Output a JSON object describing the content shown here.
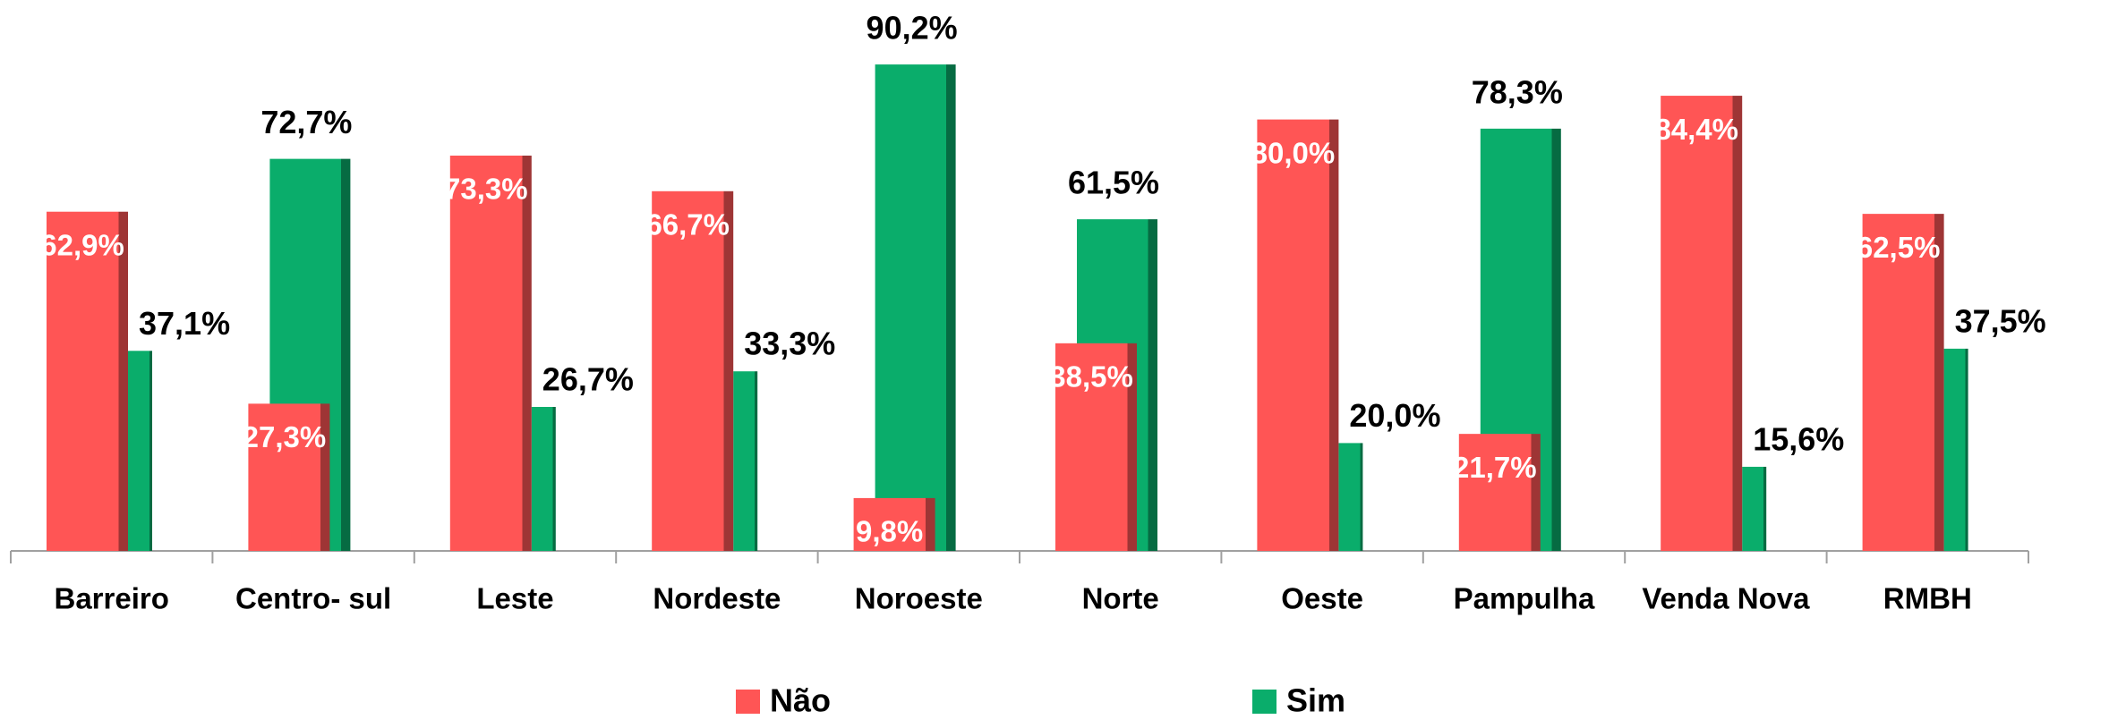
{
  "chart_data": {
    "type": "bar",
    "categories": [
      "Barreiro",
      "Centro- sul",
      "Leste",
      "Nordeste",
      "Noroeste",
      "Norte",
      "Oeste",
      "Pampulha",
      "Venda Nova",
      "RMBH"
    ],
    "series": [
      {
        "name": "Não",
        "color": "#ff5555",
        "values": [
          62.9,
          27.3,
          73.3,
          66.7,
          9.8,
          38.5,
          80.0,
          21.7,
          84.4,
          62.5
        ],
        "value_labels": [
          "62,9%",
          "27,3%",
          "73,3%",
          "66,7%",
          "9,8%",
          "38,5%",
          "80,0%",
          "21,7%",
          "84,4%",
          "62,5%"
        ]
      },
      {
        "name": "Sim",
        "color": "#0aad6b",
        "values": [
          37.1,
          72.7,
          26.7,
          33.3,
          90.2,
          61.5,
          20.0,
          78.3,
          15.6,
          37.5
        ],
        "value_labels": [
          "37,1%",
          "72,7%",
          "26,7%",
          "33,3%",
          "90,2%",
          "61,5%",
          "20,0%",
          "78,3%",
          "15,6%",
          "37,5%"
        ]
      }
    ],
    "ylim": [
      0,
      100
    ],
    "legend": "bottom"
  }
}
